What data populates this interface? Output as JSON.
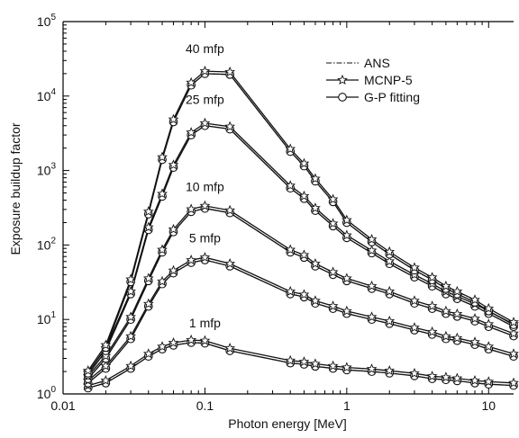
{
  "chart_data": {
    "type": "line",
    "xlabel": "Photon energy [MeV]",
    "ylabel": "Exposure buildup factor",
    "xscale": "log",
    "yscale": "log",
    "xlim": [
      0.01,
      15
    ],
    "ylim": [
      1,
      100000
    ],
    "x_ticks": [
      {
        "value": 0.01,
        "label": "0.01"
      },
      {
        "value": 0.1,
        "label": "0.1"
      },
      {
        "value": 1,
        "label": "1"
      },
      {
        "value": 10,
        "label": "10"
      }
    ],
    "y_ticks": [
      {
        "value": 1,
        "base": "10",
        "exp": "0"
      },
      {
        "value": 10,
        "base": "10",
        "exp": "1"
      },
      {
        "value": 100,
        "base": "10",
        "exp": "2"
      },
      {
        "value": 1000,
        "base": "10",
        "exp": "3"
      },
      {
        "value": 10000,
        "base": "10",
        "exp": "4"
      },
      {
        "value": 100000,
        "base": "10",
        "exp": "5"
      }
    ],
    "legend": {
      "placement": "top-right",
      "entries": [
        {
          "label": "ANS",
          "style": "dash-dot"
        },
        {
          "label": "MCNP-5",
          "style": "star"
        },
        {
          "label": "G-P fitting",
          "style": "circle"
        }
      ]
    },
    "energies": [
      0.015,
      0.02,
      0.03,
      0.04,
      0.05,
      0.06,
      0.08,
      0.1,
      0.15,
      0.4,
      0.5,
      0.6,
      0.8,
      1,
      1.5,
      2,
      3,
      4,
      5,
      6,
      8,
      10,
      15
    ],
    "curves": [
      {
        "label": "1 mfp",
        "label_at": [
          0.1,
          7.8
        ],
        "values": [
          1.2,
          1.4,
          2.2,
          3.2,
          4.0,
          4.5,
          4.9,
          4.8,
          3.8,
          2.6,
          2.5,
          2.35,
          2.2,
          2.1,
          2.0,
          1.9,
          1.75,
          1.6,
          1.55,
          1.5,
          1.4,
          1.35,
          1.3
        ]
      },
      {
        "label": "5 mfp",
        "label_at": [
          0.1,
          108
        ],
        "values": [
          1.4,
          2.2,
          5.5,
          15,
          30,
          42,
          58,
          63,
          52,
          22,
          20,
          16.5,
          14,
          12,
          10,
          8.8,
          7.2,
          6.3,
          5.5,
          5.2,
          4.6,
          4.0,
          3.2
        ]
      },
      {
        "label": "10 mfp",
        "label_at": [
          0.1,
          530
        ],
        "values": [
          1.6,
          3.0,
          10,
          33,
          80,
          150,
          280,
          310,
          270,
          80,
          68,
          52,
          40,
          33,
          26,
          22,
          16.5,
          14,
          12,
          11,
          9.5,
          8.0,
          6.0
        ]
      },
      {
        "label": "25 mfp",
        "label_at": [
          0.1,
          7800
        ],
        "values": [
          1.8,
          3.8,
          22,
          160,
          450,
          1100,
          3000,
          4000,
          3600,
          580,
          420,
          290,
          180,
          125,
          78,
          56,
          37,
          28,
          22,
          19,
          15,
          12,
          8.0
        ]
      },
      {
        "label": "40 mfp",
        "label_at": [
          0.1,
          38000
        ],
        "values": [
          1.9,
          4.2,
          32,
          260,
          1400,
          4500,
          14000,
          20000,
          19500,
          1800,
          1150,
          720,
          380,
          200,
          110,
          75,
          46,
          34,
          26,
          22,
          17,
          13,
          8.5
        ]
      }
    ]
  }
}
